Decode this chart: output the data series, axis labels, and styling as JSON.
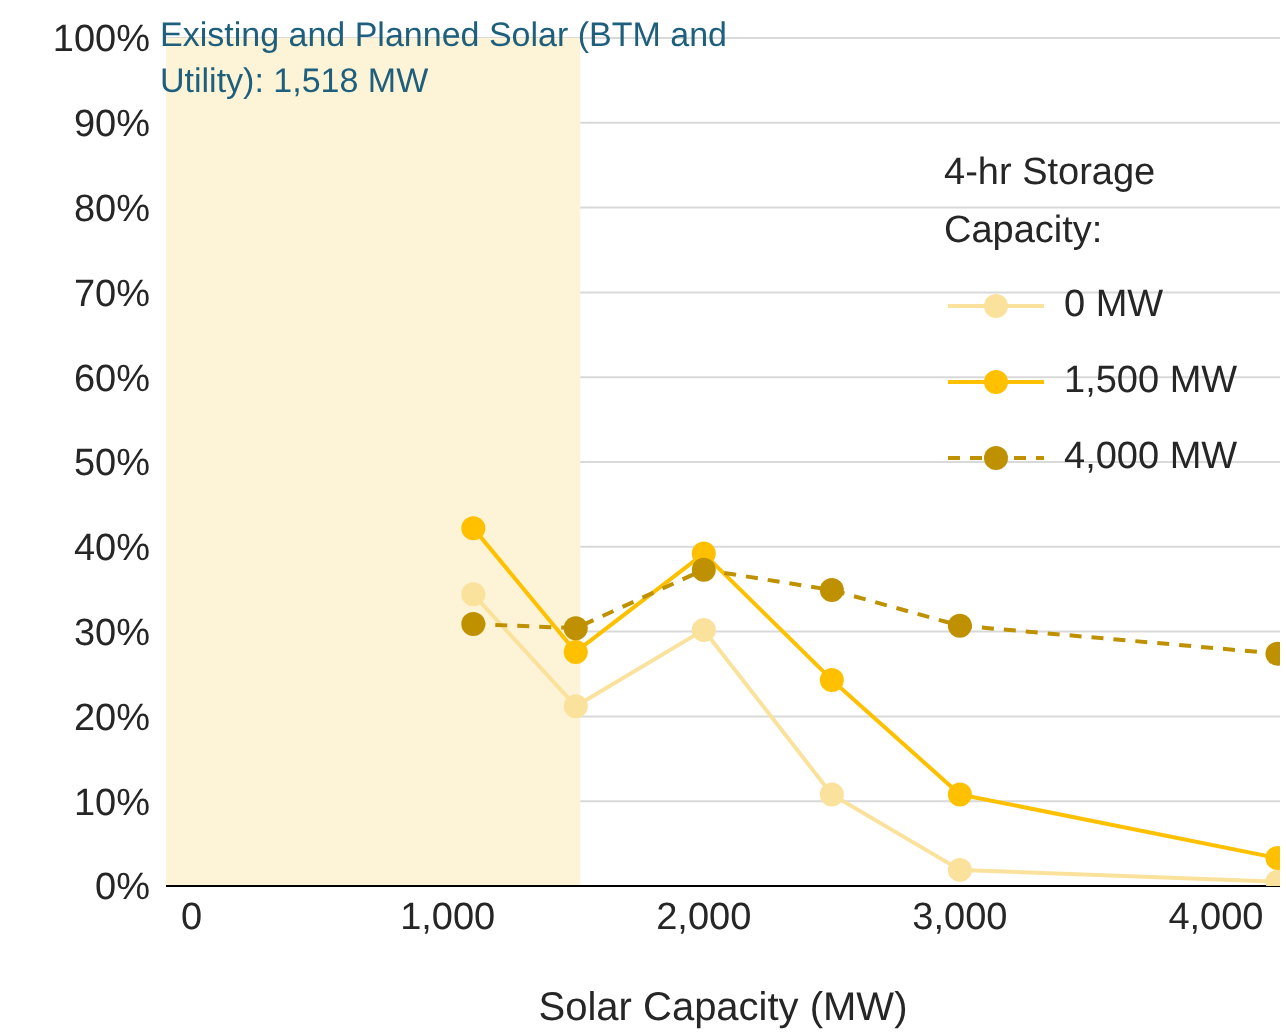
{
  "chart_data": {
    "type": "line",
    "xlabel": "Solar Capacity (MW)",
    "legend_title": "4-hr Storage Capacity:",
    "x": [
      1100,
      1500,
      2000,
      2500,
      3000,
      4240
    ],
    "series": [
      {
        "name": "0 MW",
        "color": "#fbe29c",
        "values": [
          34.4,
          21.2,
          30.2,
          10.8,
          1.9,
          0.5
        ]
      },
      {
        "name": "1,500 MW",
        "color": "#ffc000",
        "values": [
          42.2,
          27.6,
          39.2,
          24.3,
          10.8,
          3.3
        ]
      },
      {
        "name": "4,000 MW",
        "color": "#bf9000",
        "line_style": "dashed",
        "values": [
          30.9,
          30.4,
          37.3,
          34.9,
          30.7,
          27.4
        ]
      }
    ],
    "xlim": [
      -100,
      4250
    ],
    "xticks": [
      {
        "value": 0,
        "label": "0"
      },
      {
        "value": 1000,
        "label": "1,000"
      },
      {
        "value": 2000,
        "label": "2,000"
      },
      {
        "value": 3000,
        "label": "3,000"
      },
      {
        "value": 4000,
        "label": "4,000"
      }
    ],
    "ylim": [
      0,
      100
    ],
    "yticks": [
      {
        "value": 0,
        "label": "0%"
      },
      {
        "value": 10,
        "label": "10%"
      },
      {
        "value": 20,
        "label": "20%"
      },
      {
        "value": 30,
        "label": "30%"
      },
      {
        "value": 40,
        "label": "40%"
      },
      {
        "value": 50,
        "label": "50%"
      },
      {
        "value": 60,
        "label": "60%"
      },
      {
        "value": 70,
        "label": "70%"
      },
      {
        "value": 80,
        "label": "80%"
      },
      {
        "value": 90,
        "label": "90%"
      },
      {
        "value": 100,
        "label": "100%"
      }
    ],
    "bands": [
      {
        "axis": "x",
        "from": -100,
        "to": 1518,
        "color": "#fdf3d6",
        "label": "Existing and Planned Solar (BTM and Utility): 1,518 MW"
      }
    ],
    "grid": "y",
    "legend": "right",
    "marker": "circle",
    "line_style": "solid"
  }
}
